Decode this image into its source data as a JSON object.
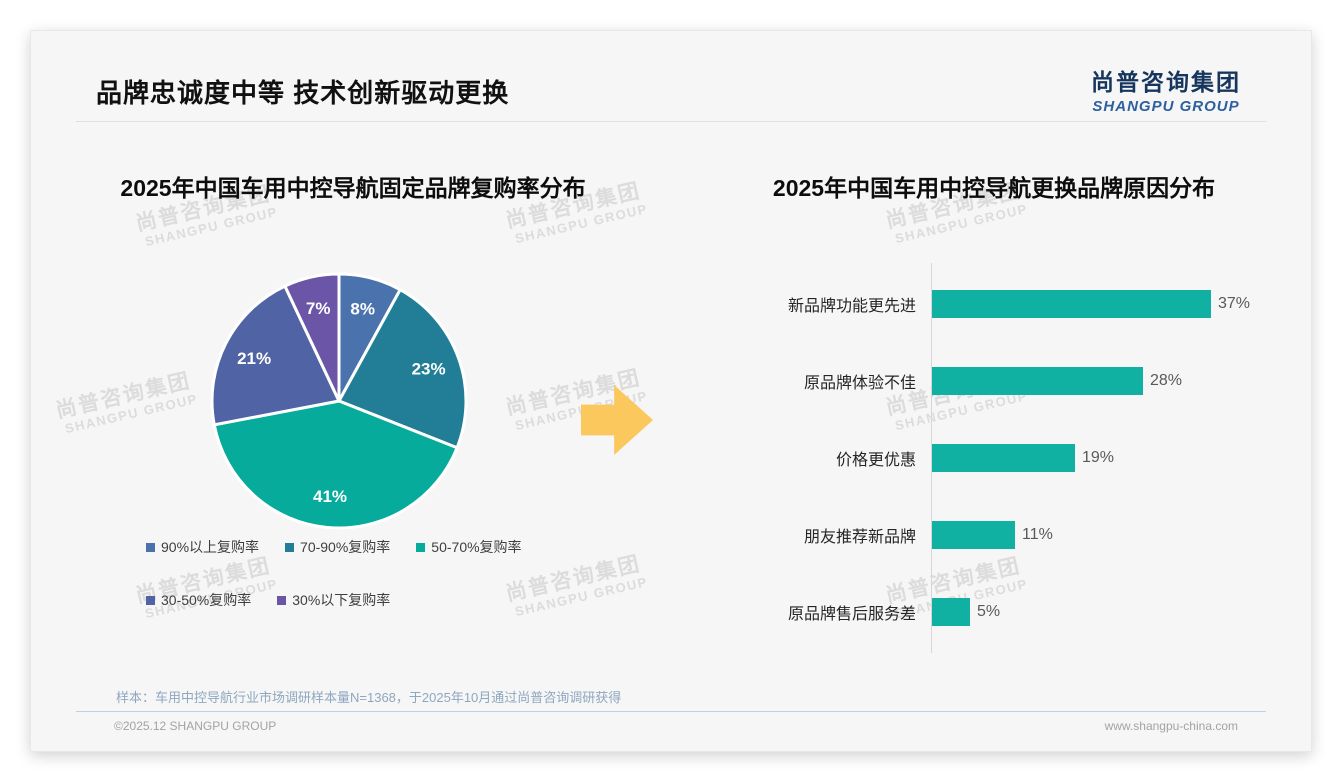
{
  "page": {
    "title": "品牌忠诚度中等 技术创新驱动更换",
    "logo": {
      "cn": "尚普咨询集团",
      "en": "SHANGPU GROUP"
    },
    "watermark": {
      "cn": "尚普咨询集团",
      "en": "SHANGPU GROUP"
    },
    "footer": {
      "sample_note": "样本：车用中控导航行业市场调研样本量N=1368，于2025年10月通过尚普咨询调研获得",
      "copyright": "©2025.12 SHANGPU GROUP",
      "website": "www.shangpu-china.com"
    }
  },
  "decor": {
    "arrow_color": "#fbc85e"
  },
  "chart_data": [
    {
      "type": "pie",
      "title": "2025年中国车用中控导航固定品牌复购率分布",
      "labels": [
        "90%以上复购率",
        "70-90%复购率",
        "50-70%复购率",
        "30-50%复购率",
        "30%以下复购率"
      ],
      "values": [
        8,
        23,
        41,
        21,
        7
      ],
      "data_labels": [
        "8%",
        "23%",
        "41%",
        "21%",
        "7%"
      ],
      "colors": [
        "#4a72ac",
        "#217e96",
        "#06ab9c",
        "#5063a4",
        "#6b55a6"
      ],
      "start_angle": "top",
      "direction": "clockwise",
      "legend_position": "bottom",
      "slice_border_color": "#ffffff"
    },
    {
      "type": "bar",
      "orientation": "horizontal",
      "title": "2025年中国车用中控导航更换品牌原因分布",
      "categories": [
        "新品牌功能更先进",
        "原品牌体验不佳",
        "价格更优惠",
        "朋友推荐新品牌",
        "原品牌售后服务差"
      ],
      "values": [
        37,
        28,
        19,
        11,
        5
      ],
      "data_labels": [
        "37%",
        "28%",
        "19%",
        "11%",
        "5%"
      ],
      "bar_color": "#10b0a2",
      "xlim": [
        0,
        40
      ],
      "grid": false,
      "axis_line": true
    }
  ]
}
